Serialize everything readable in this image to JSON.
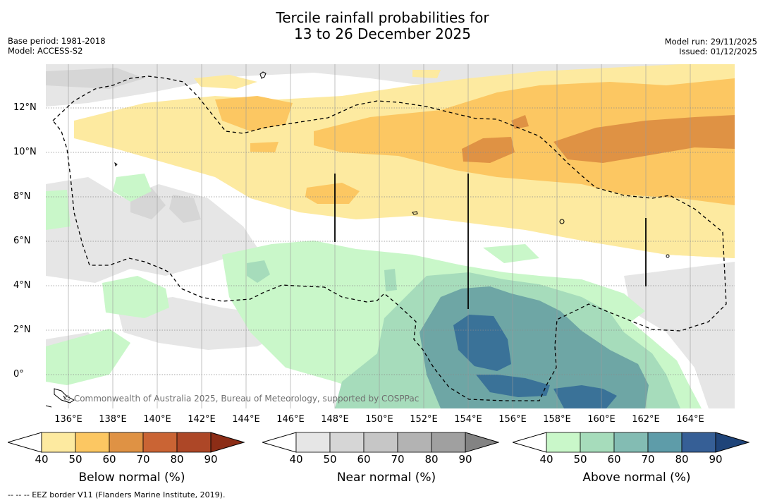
{
  "title": {
    "line1": "Tercile rainfall probabilities for",
    "line2": "13 to 26 December 2025"
  },
  "meta": {
    "base_period": "Base period: 1981-2018",
    "model": "Model: ACCESS-S2",
    "model_run": "Model run: 29/11/2025",
    "issued": "Issued: 01/12/2025"
  },
  "axes": {
    "lat_labels": [
      "12°N",
      "10°N",
      "8°N",
      "6°N",
      "4°N",
      "2°N",
      "0°"
    ],
    "lon_labels": [
      "136°E",
      "138°E",
      "140°E",
      "142°E",
      "144°E",
      "146°E",
      "148°E",
      "150°E",
      "152°E",
      "154°E",
      "156°E",
      "158°E",
      "160°E",
      "162°E",
      "164°E"
    ]
  },
  "credit": "© Commonwealth of Australia 2025, Bureau of Meteorology, supported by COSPPac",
  "colorbars": [
    {
      "title": "Below normal (%)",
      "ticks": [
        "40",
        "50",
        "60",
        "70",
        "80",
        "90"
      ],
      "colors": [
        "#fdeaa0",
        "#fcc762",
        "#df9244",
        "#ca6434",
        "#ad4727",
        "#8c2d16"
      ]
    },
    {
      "title": "Near normal (%)",
      "ticks": [
        "40",
        "50",
        "60",
        "70",
        "80",
        "90"
      ],
      "colors": [
        "#e6e6e6",
        "#d6d6d6",
        "#c6c6c6",
        "#b3b3b3",
        "#a0a0a0",
        "#838383"
      ]
    },
    {
      "title": "Above normal (%)",
      "ticks": [
        "40",
        "50",
        "60",
        "70",
        "80",
        "90"
      ],
      "colors": [
        "#c9f7c9",
        "#a6dcbb",
        "#83bcb3",
        "#5e9ca9",
        "#365f96",
        "#1f4479"
      ]
    }
  ],
  "footnote": "--  --  -- EEZ border V11 (Flanders Marine Institute, 2019)."
}
